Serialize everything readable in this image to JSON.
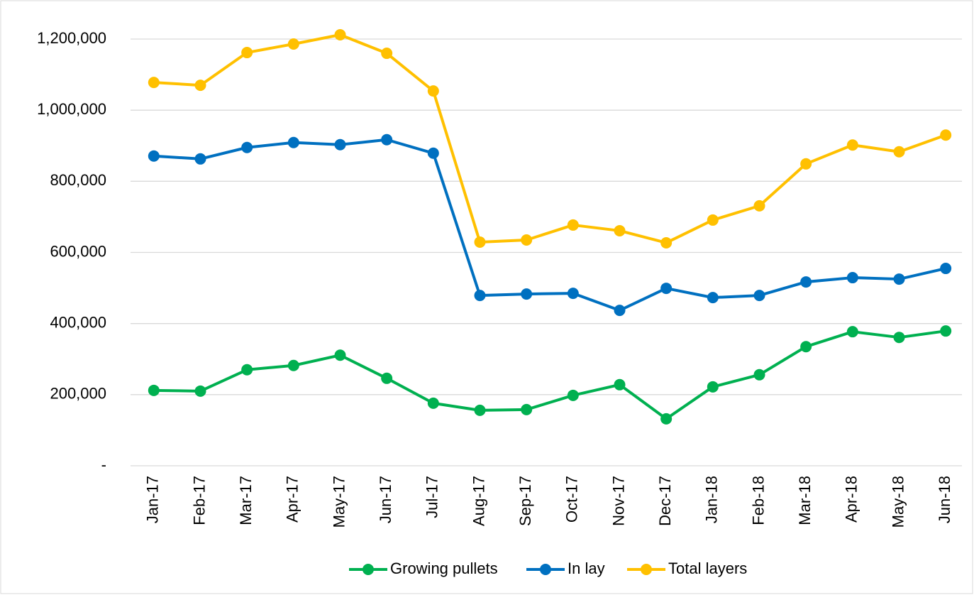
{
  "chart_data": {
    "type": "line",
    "categories": [
      "Jan-17",
      "Feb-17",
      "Mar-17",
      "Apr-17",
      "May-17",
      "Jun-17",
      "Jul-17",
      "Aug-17",
      "Sep-17",
      "Oct-17",
      "Nov-17",
      "Dec-17",
      "Jan-18",
      "Feb-18",
      "Mar-18",
      "Apr-18",
      "May-18",
      "Jun-18"
    ],
    "series": [
      {
        "name": "Growing pullets",
        "color": "#00b050",
        "values": [
          212000,
          210000,
          270000,
          282000,
          311000,
          246000,
          176000,
          156000,
          158000,
          198000,
          228000,
          132000,
          222000,
          256000,
          335000,
          377000,
          361000,
          379000
        ]
      },
      {
        "name": "In lay",
        "color": "#0070c0",
        "values": [
          871000,
          863000,
          895000,
          909000,
          903000,
          917000,
          879000,
          479000,
          483000,
          485000,
          437000,
          499000,
          473000,
          479000,
          517000,
          529000,
          525000,
          555000
        ]
      },
      {
        "name": "Total layers",
        "color": "#ffc000",
        "values": [
          1078000,
          1070000,
          1162000,
          1186000,
          1212000,
          1160000,
          1054000,
          629000,
          635000,
          677000,
          661000,
          627000,
          691000,
          731000,
          849000,
          902000,
          883000,
          930000
        ]
      }
    ],
    "ylim": [
      0,
      1200000
    ],
    "yticks": [
      {
        "value": 0,
        "label": "-"
      },
      {
        "value": 200000,
        "label": "200,000"
      },
      {
        "value": 400000,
        "label": "400,000"
      },
      {
        "value": 600000,
        "label": "600,000"
      },
      {
        "value": 800000,
        "label": "800,000"
      },
      {
        "value": 1000000,
        "label": "1,000,000"
      },
      {
        "value": 1200000,
        "label": "1,200,000"
      }
    ],
    "grid": true,
    "legend": "bottom"
  }
}
